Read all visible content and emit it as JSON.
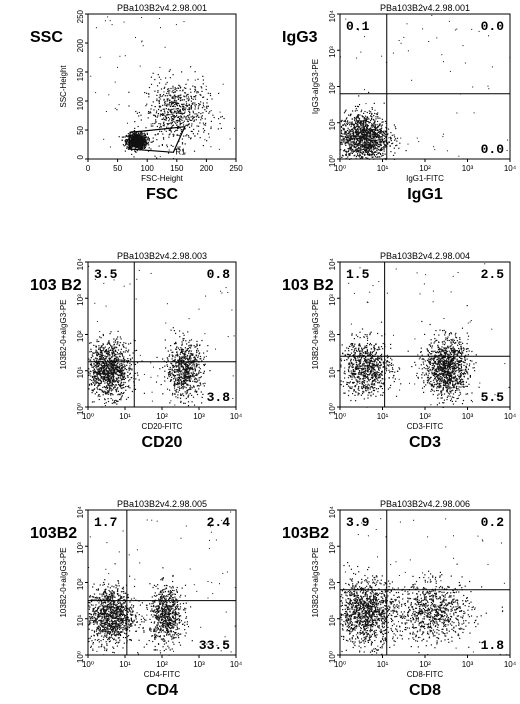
{
  "chart_data": [
    {
      "type": "scatter",
      "file_label": "PBa103B2v4.2.98.001",
      "left_label": "SSC",
      "bottom_label": "FSC",
      "xlabel": "FSC-Height",
      "ylabel": "SSC-Height",
      "x_ticks": [
        "0",
        "50",
        "100",
        "150",
        "200",
        "250"
      ],
      "y_ticks": [
        "0",
        "50",
        "100",
        "150",
        "200",
        "250"
      ],
      "xlim": [
        0,
        260
      ],
      "ylim": [
        0,
        260
      ],
      "scale": "linear",
      "gate_label": "R1",
      "clusters": [
        {
          "x": 85,
          "y": 33,
          "sx": 9,
          "sy": 7,
          "n": 900
        },
        {
          "x": 155,
          "y": 85,
          "sx": 28,
          "sy": 28,
          "n": 650
        }
      ],
      "gate": [
        [
          72,
          18
        ],
        [
          74,
          48
        ],
        [
          96,
          50
        ],
        [
          170,
          58
        ],
        [
          150,
          12
        ]
      ]
    },
    {
      "type": "scatter",
      "file_label": "PBa103B2v4.2.98.001",
      "left_label": "IgG3",
      "bottom_label": "IgG1",
      "xlabel": "IgG1-FITC",
      "ylabel": "IgG3-aIgG3-PE",
      "x_ticks": [
        "10⁰",
        "10¹",
        "10²",
        "10³",
        "10⁴"
      ],
      "y_ticks": [
        "10⁰",
        "10¹",
        "10²",
        "10³",
        "10⁴"
      ],
      "xlim": [
        0,
        4
      ],
      "ylim": [
        0,
        4
      ],
      "scale": "log",
      "quadrant_gate": {
        "x": 1.1,
        "y": 1.8
      },
      "quadrants": {
        "upper_left": "0.1",
        "upper_right": "0.0",
        "lower_right": "0.0"
      },
      "clusters": [
        {
          "x": 0.55,
          "y": 0.6,
          "sx": 0.3,
          "sy": 0.35,
          "n": 1300
        }
      ]
    },
    {
      "type": "scatter",
      "file_label": "PBa103B2v4.2.98.003",
      "left_label": "103 B2",
      "bottom_label": "CD20",
      "xlabel": "CD20-FITC",
      "ylabel": "103B2-0+aIgG3-PE",
      "x_ticks": [
        "10⁰",
        "10¹",
        "10²",
        "10³",
        "10⁴"
      ],
      "y_ticks": [
        "10⁰",
        "10¹",
        "10²",
        "10³",
        "10⁴"
      ],
      "xlim": [
        0,
        4
      ],
      "ylim": [
        0,
        4
      ],
      "scale": "log",
      "quadrant_gate": {
        "x": 1.25,
        "y": 1.25
      },
      "quadrants": {
        "upper_left": "3.5",
        "upper_right": "0.8",
        "lower_right": "3.8"
      },
      "clusters": [
        {
          "x": 0.55,
          "y": 1.05,
          "sx": 0.3,
          "sy": 0.38,
          "n": 1100
        },
        {
          "x": 2.6,
          "y": 1.05,
          "sx": 0.25,
          "sy": 0.38,
          "n": 700
        }
      ]
    },
    {
      "type": "scatter",
      "file_label": "PBa103B2v4.2.98.004",
      "left_label": "103 B2",
      "bottom_label": "CD3",
      "xlabel": "CD3-FITC",
      "ylabel": "103B2-0+aIgG3-PE",
      "x_ticks": [
        "10⁰",
        "10¹",
        "10²",
        "10³",
        "10⁴"
      ],
      "y_ticks": [
        "10⁰",
        "10¹",
        "10²",
        "10³",
        "10⁴"
      ],
      "xlim": [
        0,
        4
      ],
      "ylim": [
        0,
        4
      ],
      "scale": "log",
      "quadrant_gate": {
        "x": 1.05,
        "y": 1.4
      },
      "quadrants": {
        "upper_left": "1.5",
        "upper_right": "2.5",
        "lower_right": "5.5"
      },
      "clusters": [
        {
          "x": 0.6,
          "y": 1.1,
          "sx": 0.3,
          "sy": 0.38,
          "n": 800
        },
        {
          "x": 2.5,
          "y": 1.1,
          "sx": 0.25,
          "sy": 0.4,
          "n": 1100
        }
      ]
    },
    {
      "type": "scatter",
      "file_label": "PBa103B2v4.2.98.005",
      "left_label": "103B2",
      "bottom_label": "CD4",
      "xlabel": "CD4-FITC",
      "ylabel": "103B2-0+aIgG3-PE",
      "x_ticks": [
        "10⁰",
        "10¹",
        "10²",
        "10³",
        "10⁴"
      ],
      "y_ticks": [
        "10⁰",
        "10¹",
        "10²",
        "10³",
        "10⁴"
      ],
      "xlim": [
        0,
        4
      ],
      "ylim": [
        0,
        4
      ],
      "scale": "log",
      "quadrant_gate": {
        "x": 1.05,
        "y": 1.5
      },
      "quadrants": {
        "upper_left": "1.7",
        "upper_right": "2.4",
        "lower_right": "33.5"
      },
      "clusters": [
        {
          "x": 0.6,
          "y": 1.1,
          "sx": 0.32,
          "sy": 0.4,
          "n": 1100
        },
        {
          "x": 2.1,
          "y": 1.1,
          "sx": 0.22,
          "sy": 0.4,
          "n": 700
        }
      ]
    },
    {
      "type": "scatter",
      "file_label": "PBa103B2v4.2.98.006",
      "left_label": "103B2",
      "bottom_label": "CD8",
      "xlabel": "CD8-FITC",
      "ylabel": "103B2-0+aIgG3-PE",
      "x_ticks": [
        "10⁰",
        "10¹",
        "10²",
        "10³",
        "10⁴"
      ],
      "y_ticks": [
        "10⁰",
        "10¹",
        "10²",
        "10³",
        "10⁴"
      ],
      "xlim": [
        0,
        4
      ],
      "ylim": [
        0,
        4
      ],
      "scale": "log",
      "quadrant_gate": {
        "x": 1.1,
        "y": 1.8
      },
      "quadrants": {
        "upper_left": "3.9",
        "upper_right": "0.2",
        "lower_right": "1.8"
      },
      "clusters": [
        {
          "x": 0.6,
          "y": 1.2,
          "sx": 0.35,
          "sy": 0.45,
          "n": 1200
        },
        {
          "x": 2.2,
          "y": 1.2,
          "sx": 0.45,
          "sy": 0.4,
          "n": 800
        }
      ]
    }
  ]
}
